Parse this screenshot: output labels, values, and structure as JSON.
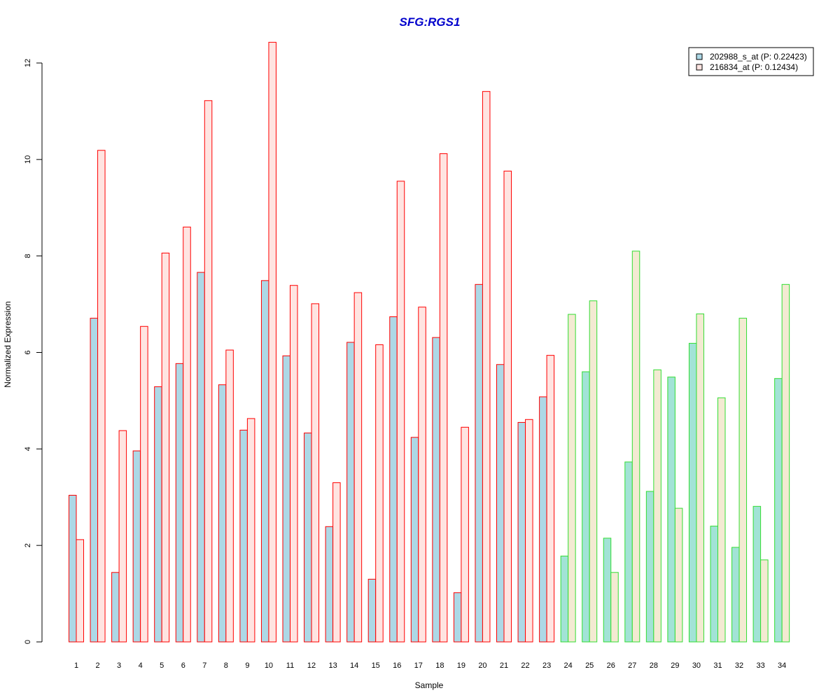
{
  "chart_data": {
    "type": "bar",
    "title": "SFG:RGS1",
    "xlabel": "Sample",
    "ylabel": "Normalized Expression",
    "ylim": [
      0,
      12.5
    ],
    "yticks": [
      0,
      2,
      4,
      6,
      8,
      10,
      12
    ],
    "categories": [
      "1",
      "2",
      "3",
      "4",
      "5",
      "6",
      "7",
      "8",
      "9",
      "10",
      "11",
      "12",
      "13",
      "14",
      "15",
      "16",
      "17",
      "18",
      "19",
      "20",
      "21",
      "22",
      "23",
      "24",
      "25",
      "26",
      "27",
      "28",
      "29",
      "30",
      "31",
      "32",
      "33",
      "34"
    ],
    "series": [
      {
        "name": "202988_s_at (P: 0.22423)",
        "values": [
          3.04,
          6.71,
          1.44,
          3.96,
          5.29,
          5.77,
          7.66,
          5.33,
          4.39,
          7.49,
          5.93,
          4.33,
          2.39,
          6.21,
          1.3,
          6.74,
          4.24,
          6.31,
          1.02,
          7.41,
          5.75,
          4.55,
          5.08,
          1.78,
          5.6,
          2.15,
          3.73,
          3.12,
          5.49,
          6.19,
          2.4,
          1.96,
          2.81,
          5.46
        ]
      },
      {
        "name": "216834_at (P: 0.12434)",
        "values": [
          2.12,
          10.19,
          4.38,
          6.54,
          8.06,
          8.6,
          11.22,
          6.05,
          4.63,
          12.43,
          7.39,
          7.01,
          3.3,
          7.24,
          6.16,
          9.55,
          6.94,
          10.12,
          4.45,
          11.41,
          9.76,
          4.61,
          5.94,
          6.79,
          7.07,
          1.44,
          8.1,
          5.64,
          2.77,
          6.8,
          5.06,
          6.71,
          1.7,
          7.41
        ]
      }
    ],
    "group_split_after": 23,
    "colors": {
      "title": "#0000cc",
      "series1_fill_group1": "#add8e6",
      "series2_fill_group1": "#ffe4e1",
      "border_group1": "#ff0000",
      "series1_fill_group2": "#a2e3d6",
      "series2_fill_group2": "#f3ead2",
      "border_group2": "#33dd33"
    },
    "legend_position": "top-right",
    "grid": false
  }
}
